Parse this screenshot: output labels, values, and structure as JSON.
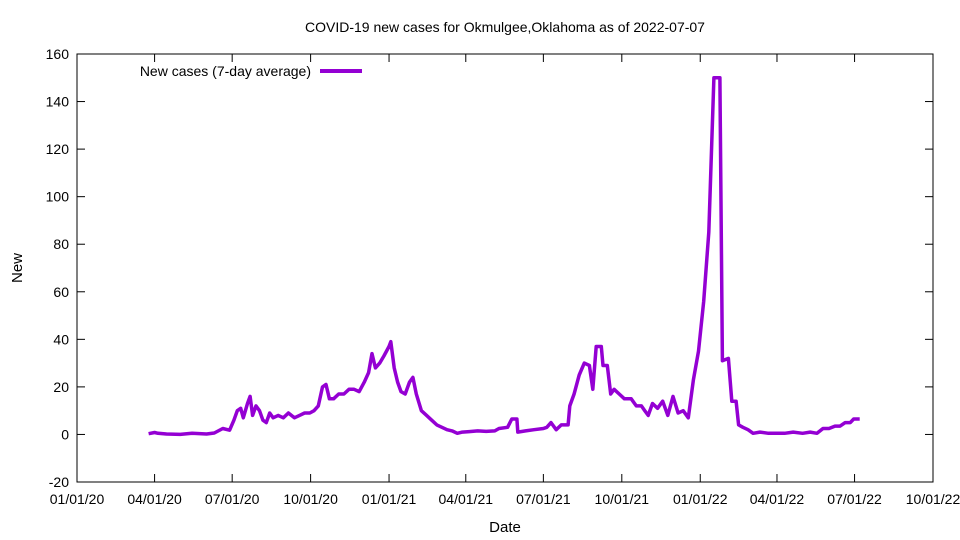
{
  "chart_data": {
    "type": "line",
    "title": "COVID-19 new cases for Okmulgee,Oklahoma as of 2022-07-07",
    "xlabel": "Date",
    "ylabel": "New",
    "ylim": [
      -20,
      160
    ],
    "yticks": [
      -20,
      0,
      20,
      40,
      60,
      80,
      100,
      120,
      140,
      160
    ],
    "xlim": [
      "2020-01-01",
      "2022-10-01"
    ],
    "xticks": [
      {
        "date": "2020-01-01",
        "label": "01/01/20"
      },
      {
        "date": "2020-04-01",
        "label": "04/01/20"
      },
      {
        "date": "2020-07-01",
        "label": "07/01/20"
      },
      {
        "date": "2020-10-01",
        "label": "10/01/20"
      },
      {
        "date": "2021-01-01",
        "label": "01/01/21"
      },
      {
        "date": "2021-04-01",
        "label": "04/01/21"
      },
      {
        "date": "2021-07-01",
        "label": "07/01/21"
      },
      {
        "date": "2021-10-01",
        "label": "10/01/21"
      },
      {
        "date": "2022-01-01",
        "label": "01/01/22"
      },
      {
        "date": "2022-04-01",
        "label": "04/01/22"
      },
      {
        "date": "2022-07-01",
        "label": "07/01/22"
      },
      {
        "date": "2022-10-01",
        "label": "10/01/22"
      }
    ],
    "grid": false,
    "legend_position": "top-left",
    "series": [
      {
        "name": "New cases (7-day average)",
        "color": "#9400d3",
        "points": [
          [
            "2020-03-25",
            0.3
          ],
          [
            "2020-04-01",
            0.8
          ],
          [
            "2020-04-05",
            0.5
          ],
          [
            "2020-04-15",
            0.2
          ],
          [
            "2020-05-01",
            0.0
          ],
          [
            "2020-05-15",
            0.5
          ],
          [
            "2020-06-01",
            0.2
          ],
          [
            "2020-06-10",
            0.6
          ],
          [
            "2020-06-20",
            2.5
          ],
          [
            "2020-06-28",
            1.8
          ],
          [
            "2020-07-03",
            6
          ],
          [
            "2020-07-07",
            10
          ],
          [
            "2020-07-11",
            11
          ],
          [
            "2020-07-14",
            7
          ],
          [
            "2020-07-19",
            13
          ],
          [
            "2020-07-22",
            16
          ],
          [
            "2020-07-25",
            8
          ],
          [
            "2020-07-29",
            12
          ],
          [
            "2020-08-02",
            10
          ],
          [
            "2020-08-06",
            6
          ],
          [
            "2020-08-10",
            5
          ],
          [
            "2020-08-14",
            9
          ],
          [
            "2020-08-18",
            7
          ],
          [
            "2020-08-24",
            8
          ],
          [
            "2020-08-30",
            7
          ],
          [
            "2020-09-05",
            9
          ],
          [
            "2020-09-12",
            7
          ],
          [
            "2020-09-18",
            8
          ],
          [
            "2020-09-24",
            9
          ],
          [
            "2020-09-30",
            9
          ],
          [
            "2020-10-05",
            10
          ],
          [
            "2020-10-10",
            12
          ],
          [
            "2020-10-15",
            20
          ],
          [
            "2020-10-19",
            21
          ],
          [
            "2020-10-23",
            15
          ],
          [
            "2020-10-28",
            15
          ],
          [
            "2020-11-03",
            17
          ],
          [
            "2020-11-09",
            17
          ],
          [
            "2020-11-15",
            19
          ],
          [
            "2020-11-21",
            19
          ],
          [
            "2020-11-27",
            18
          ],
          [
            "2020-12-03",
            22
          ],
          [
            "2020-12-08",
            26
          ],
          [
            "2020-12-12",
            34
          ],
          [
            "2020-12-16",
            28
          ],
          [
            "2020-12-21",
            30
          ],
          [
            "2020-12-26",
            33
          ],
          [
            "2021-01-01",
            37
          ],
          [
            "2021-01-03",
            39
          ],
          [
            "2021-01-07",
            28
          ],
          [
            "2021-01-11",
            22
          ],
          [
            "2021-01-15",
            18
          ],
          [
            "2021-01-20",
            17
          ],
          [
            "2021-01-25",
            22
          ],
          [
            "2021-01-29",
            24
          ],
          [
            "2021-02-02",
            17
          ],
          [
            "2021-02-08",
            10
          ],
          [
            "2021-02-14",
            8
          ],
          [
            "2021-02-20",
            6
          ],
          [
            "2021-02-26",
            4
          ],
          [
            "2021-03-04",
            3
          ],
          [
            "2021-03-10",
            2
          ],
          [
            "2021-03-16",
            1.5
          ],
          [
            "2021-03-22",
            0.5
          ],
          [
            "2021-03-28",
            1
          ],
          [
            "2021-04-05",
            1.2
          ],
          [
            "2021-04-15",
            1.5
          ],
          [
            "2021-04-25",
            1.3
          ],
          [
            "2021-05-05",
            1.5
          ],
          [
            "2021-05-10",
            2.5
          ],
          [
            "2021-05-20",
            3
          ],
          [
            "2021-05-25",
            6.5
          ],
          [
            "2021-05-31",
            6.5
          ],
          [
            "2021-06-01",
            1
          ],
          [
            "2021-06-10",
            1.5
          ],
          [
            "2021-06-20",
            2
          ],
          [
            "2021-07-01",
            2.5
          ],
          [
            "2021-07-05",
            3
          ],
          [
            "2021-07-10",
            5
          ],
          [
            "2021-07-16",
            2
          ],
          [
            "2021-07-22",
            4
          ],
          [
            "2021-07-30",
            4
          ],
          [
            "2021-08-01",
            12
          ],
          [
            "2021-08-06",
            17
          ],
          [
            "2021-08-12",
            25
          ],
          [
            "2021-08-18",
            30
          ],
          [
            "2021-08-24",
            29
          ],
          [
            "2021-08-28",
            19
          ],
          [
            "2021-09-01",
            37
          ],
          [
            "2021-09-07",
            37
          ],
          [
            "2021-09-09",
            29
          ],
          [
            "2021-09-14",
            29
          ],
          [
            "2021-09-18",
            17
          ],
          [
            "2021-09-22",
            19
          ],
          [
            "2021-09-28",
            17
          ],
          [
            "2021-10-04",
            15
          ],
          [
            "2021-10-12",
            15
          ],
          [
            "2021-10-18",
            12
          ],
          [
            "2021-10-24",
            12
          ],
          [
            "2021-10-28",
            10
          ],
          [
            "2021-11-01",
            8
          ],
          [
            "2021-11-06",
            13
          ],
          [
            "2021-11-12",
            11
          ],
          [
            "2021-11-18",
            14
          ],
          [
            "2021-11-24",
            8
          ],
          [
            "2021-11-30",
            16
          ],
          [
            "2021-12-06",
            9
          ],
          [
            "2021-12-12",
            10
          ],
          [
            "2021-12-18",
            7
          ],
          [
            "2021-12-24",
            23
          ],
          [
            "2021-12-30",
            35
          ],
          [
            "2022-01-05",
            56
          ],
          [
            "2022-01-11",
            85
          ],
          [
            "2022-01-17",
            150
          ],
          [
            "2022-01-24",
            150
          ],
          [
            "2022-01-27",
            31
          ],
          [
            "2022-02-03",
            32
          ],
          [
            "2022-02-07",
            14
          ],
          [
            "2022-02-12",
            14
          ],
          [
            "2022-02-15",
            4
          ],
          [
            "2022-02-20",
            3
          ],
          [
            "2022-02-26",
            2
          ],
          [
            "2022-03-04",
            0.5
          ],
          [
            "2022-03-12",
            1
          ],
          [
            "2022-03-22",
            0.5
          ],
          [
            "2022-04-01",
            0.5
          ],
          [
            "2022-04-10",
            0.5
          ],
          [
            "2022-04-20",
            1
          ],
          [
            "2022-05-01",
            0.5
          ],
          [
            "2022-05-10",
            1
          ],
          [
            "2022-05-18",
            0.5
          ],
          [
            "2022-05-25",
            2.5
          ],
          [
            "2022-06-01",
            2.5
          ],
          [
            "2022-06-08",
            3.5
          ],
          [
            "2022-06-14",
            3.5
          ],
          [
            "2022-06-20",
            5
          ],
          [
            "2022-06-26",
            5
          ],
          [
            "2022-06-30",
            6.5
          ],
          [
            "2022-07-07",
            6.5
          ]
        ]
      }
    ]
  }
}
